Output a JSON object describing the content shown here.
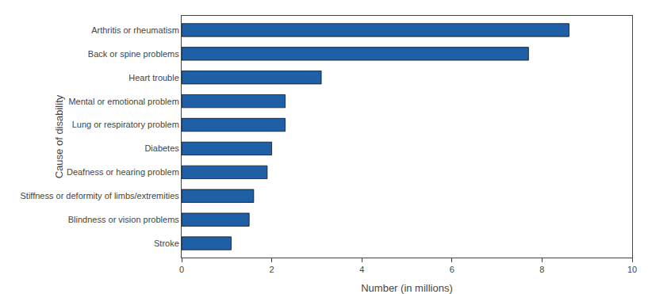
{
  "chart_data": {
    "type": "bar",
    "orientation": "horizontal",
    "categories": [
      "Stroke",
      "Blindness or vision problems",
      "Stiffness or deformity of limbs/extremities",
      "Deafness or hearing problem",
      "Diabetes",
      "Lung or respiratory problem",
      "Mental or emotional problem",
      "Heart trouble",
      "Back or spine problems",
      "Arthritis or rheumatism"
    ],
    "values": [
      1.1,
      1.5,
      1.6,
      1.9,
      2.0,
      2.3,
      2.3,
      3.1,
      7.7,
      8.6
    ],
    "color": "#1f5fa6",
    "xlabel": "Number (in millions)",
    "ylabel": "Cause of disability",
    "xlim": [
      0,
      10
    ],
    "xticks": [
      0,
      2,
      4,
      6,
      8,
      10
    ],
    "grid": false
  }
}
